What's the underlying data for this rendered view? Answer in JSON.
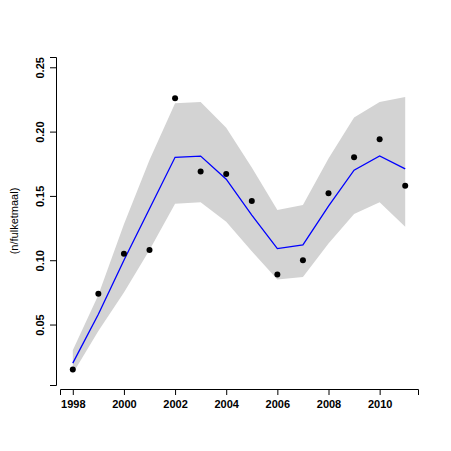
{
  "chart_data": {
    "type": "line",
    "y_label": "(n/fulketmaal)",
    "x": [
      1998,
      1999,
      2000,
      2001,
      2002,
      2003,
      2004,
      2005,
      2006,
      2007,
      2008,
      2009,
      2010,
      2011
    ],
    "series": [
      {
        "type": "area",
        "color": "#d3d3d3",
        "lower": [
          0.012,
          0.045,
          0.075,
          0.108,
          0.144,
          0.145,
          0.13,
          0.107,
          0.085,
          0.087,
          0.113,
          0.136,
          0.145,
          0.126
        ],
        "upper": [
          0.03,
          0.073,
          0.128,
          0.178,
          0.222,
          0.223,
          0.203,
          0.172,
          0.139,
          0.143,
          0.179,
          0.211,
          0.223,
          0.227
        ]
      },
      {
        "type": "line",
        "color": "#0000ff",
        "values": [
          0.02,
          0.058,
          0.1,
          0.14,
          0.18,
          0.181,
          0.163,
          0.135,
          0.109,
          0.112,
          0.142,
          0.17,
          0.181,
          0.171
        ]
      },
      {
        "type": "scatter",
        "color": "#000000",
        "marker": "circle",
        "values": [
          0.015,
          0.074,
          0.105,
          0.108,
          0.226,
          0.169,
          0.167,
          0.146,
          0.089,
          0.1,
          0.152,
          0.18,
          0.194,
          0.158
        ]
      }
    ],
    "xlim": [
      1997.5,
      2011.5
    ],
    "xticks": [
      1998,
      2000,
      2002,
      2004,
      2006,
      2008,
      2010
    ],
    "ylim": [
      0.003,
      0.258
    ],
    "yticks": [
      0.05,
      {
        "value": 0.1,
        "label": "0.10"
      },
      0.15,
      {
        "value": 0.2,
        "label": "0.20"
      },
      0.25
    ],
    "grid": false
  }
}
